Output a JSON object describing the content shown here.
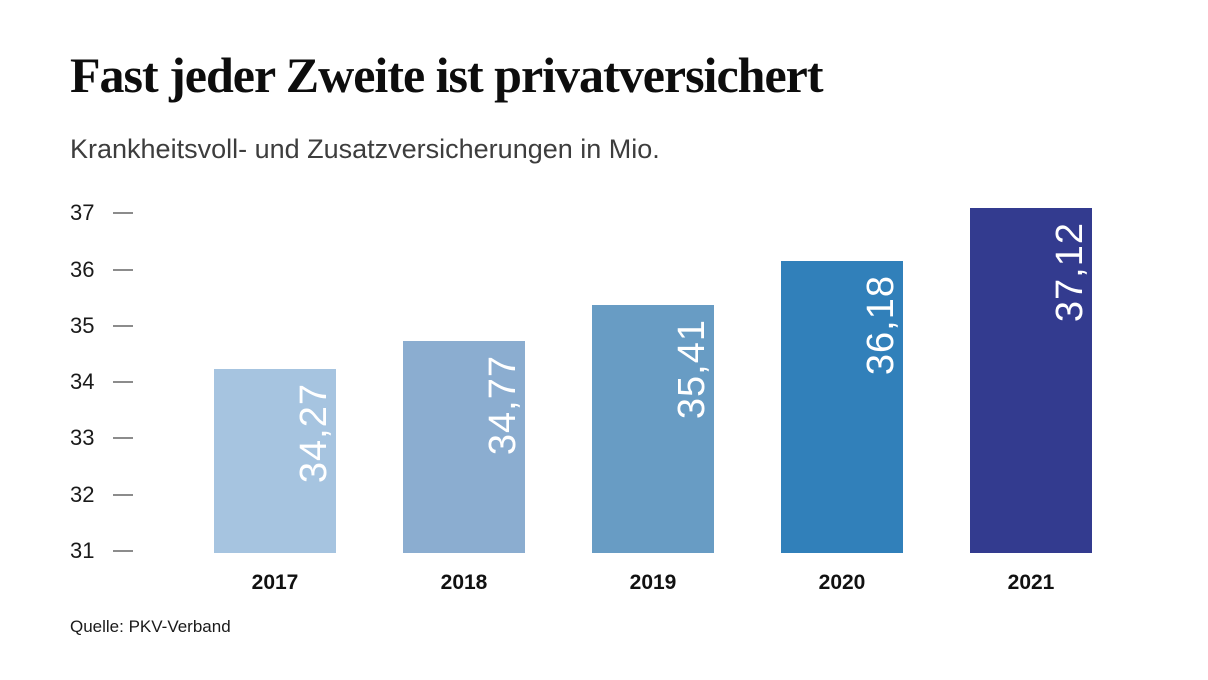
{
  "page": {
    "title": "Fast jeder Zweite ist privatversichert",
    "subtitle": "Krankheitsvoll- und Zusatzversicherungen in Mio.",
    "source": "Quelle: PKV-Verband"
  },
  "chart_data": {
    "type": "bar",
    "title": "Fast jeder Zweite ist privatversichert",
    "subtitle": "Krankheitsvoll- und Zusatzversicherungen in Mio.",
    "categories": [
      "2017",
      "2018",
      "2019",
      "2020",
      "2021"
    ],
    "values": [
      34.27,
      34.77,
      35.41,
      36.18,
      37.12
    ],
    "value_labels": [
      "34,27",
      "34,77",
      "35,41",
      "36,18",
      "37,12"
    ],
    "bar_colors": [
      "#a6c4e0",
      "#8badd0",
      "#689cc4",
      "#3180ba",
      "#333b8f"
    ],
    "value_label_color": "#ffffff",
    "ylim": [
      31,
      37.5
    ],
    "yticks": [
      31,
      32,
      33,
      34,
      35,
      36,
      37
    ],
    "xlabel": "",
    "ylabel": "",
    "grid": false,
    "legend": "none",
    "tick_color": "#8c8c8c",
    "source": "Quelle: PKV-Verband"
  }
}
